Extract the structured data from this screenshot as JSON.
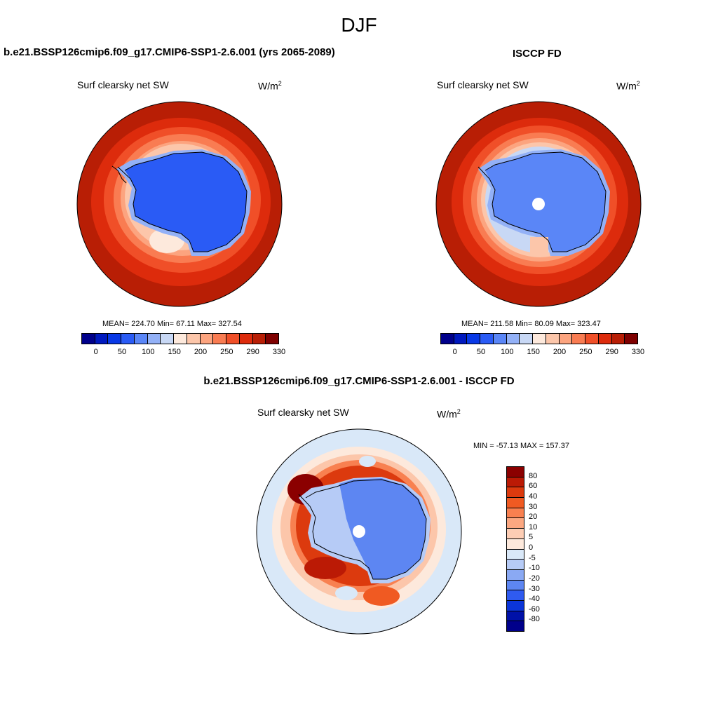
{
  "figure": {
    "season": "DJF"
  },
  "panels": {
    "model": {
      "title": "b.e21.BSSP126cmip6.f09_g17.CMIP6-SSP1-2.6.001 (yrs 2065-2089)",
      "field": "Surf clearsky net SW",
      "units_base": "W/m",
      "units_exp": "2",
      "stats": "MEAN= 224.70  Min=  67.11  Max= 327.54",
      "colorbar_ticks": [
        "0",
        "50",
        "100",
        "150",
        "200",
        "250",
        "290",
        "330"
      ]
    },
    "obs": {
      "title": "ISCCP FD",
      "field": "Surf clearsky net SW",
      "units_base": "W/m",
      "units_exp": "2",
      "stats": "MEAN= 211.58  Min=  80.09  Max= 323.47",
      "colorbar_ticks": [
        "0",
        "50",
        "100",
        "150",
        "200",
        "250",
        "290",
        "330"
      ]
    },
    "diff": {
      "title": "b.e21.BSSP126cmip6.f09_g17.CMIP6-SSP1-2.6.001 - ISCCP FD",
      "field": "Surf clearsky net SW",
      "units_base": "W/m",
      "units_exp": "2",
      "stats": "MIN = -57.13 MAX = 157.37",
      "colorbar_ticks": [
        "80",
        "60",
        "40",
        "30",
        "20",
        "10",
        "5",
        "0",
        "-5",
        "-10",
        "-20",
        "-30",
        "-40",
        "-60",
        "-80"
      ]
    }
  },
  "colors": {
    "abs_scale": [
      "#00008b",
      "#0019bf",
      "#0838e6",
      "#2a5bf5",
      "#5a86f7",
      "#93b1f7",
      "#c8d8f5",
      "#fde9dc",
      "#fcc6aa",
      "#fca47f",
      "#f97c52",
      "#f04f28",
      "#dd2b0c",
      "#b81e05",
      "#7f0000"
    ],
    "diff_scale": [
      "#8b0000",
      "#bb1a05",
      "#dc3a0e",
      "#f05a22",
      "#f88050",
      "#fba781",
      "#fdcdb4",
      "#fde9dc",
      "#d9e8f8",
      "#b6cbf6",
      "#8aa9f3",
      "#5d86f2",
      "#2f5bf0",
      "#0b35d9",
      "#0011a8",
      "#00008b"
    ]
  }
}
